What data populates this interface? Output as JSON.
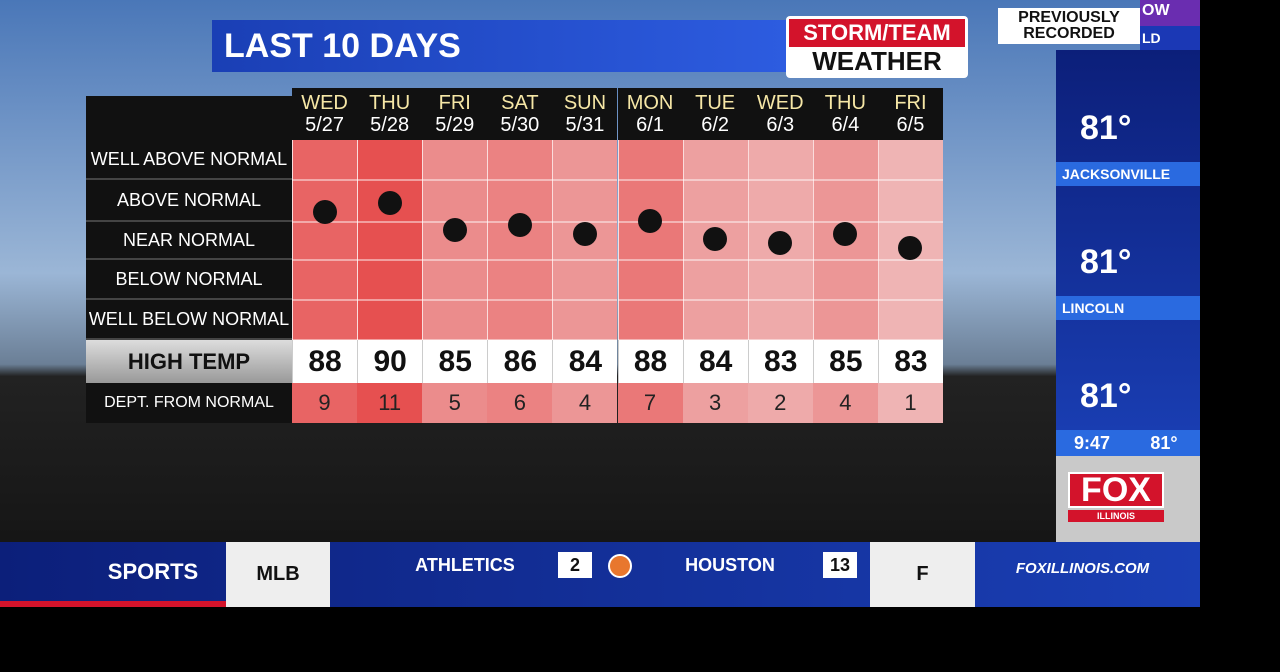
{
  "header": {
    "title": "LAST 10 DAYS",
    "logo_top": "STORM/TEAM",
    "logo_bottom": "WEATHER",
    "badge": "PREVIOUSLY RECORDED",
    "corner_top": "OW",
    "corner_bottom": "LD"
  },
  "table": {
    "days": [
      {
        "day": "WED",
        "date": "5/27"
      },
      {
        "day": "THU",
        "date": "5/28"
      },
      {
        "day": "FRI",
        "date": "5/29"
      },
      {
        "day": "SAT",
        "date": "5/30"
      },
      {
        "day": "SUN",
        "date": "5/31"
      },
      {
        "day": "MON",
        "date": "6/1"
      },
      {
        "day": "TUE",
        "date": "6/2"
      },
      {
        "day": "WED",
        "date": "6/3"
      },
      {
        "day": "THU",
        "date": "6/4"
      },
      {
        "day": "FRI",
        "date": "6/5"
      }
    ],
    "levels": [
      "WELL ABOVE NORMAL",
      "ABOVE NORMAL",
      "NEAR NORMAL",
      "BELOW NORMAL",
      "WELL BELOW NORMAL"
    ],
    "high_label": "HIGH TEMP",
    "high_temps": [
      88,
      90,
      85,
      86,
      84,
      88,
      84,
      83,
      85,
      83
    ],
    "dept_label": "DEPT. FROM NORMAL",
    "dept": [
      9,
      11,
      5,
      6,
      4,
      7,
      3,
      2,
      4,
      1
    ]
  },
  "side": {
    "cities": [
      {
        "temp": "81°",
        "name": "JACKSONVILLE"
      },
      {
        "temp": "81°",
        "name": "LINCOLN"
      },
      {
        "temp": "81°"
      }
    ],
    "time": "9:47",
    "now_temp": "81°",
    "logo": "FOX",
    "logo_sub": "ILLINOIS"
  },
  "ticker": {
    "section": "SPORTS",
    "league": "MLB",
    "away": "ATHLETICS",
    "away_score": "2",
    "home": "HOUSTON",
    "home_score": "13",
    "status": "F",
    "site": "FOXILLINOIS.COM"
  }
}
